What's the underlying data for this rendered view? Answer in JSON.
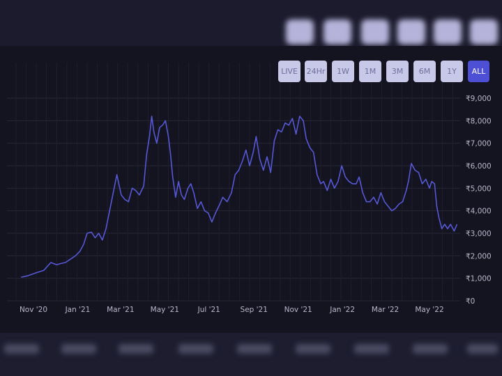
{
  "range_buttons": [
    {
      "label": "LIVE",
      "active": false
    },
    {
      "label": "24Hr",
      "active": false
    },
    {
      "label": "1W",
      "active": false
    },
    {
      "label": "1M",
      "active": false
    },
    {
      "label": "3M",
      "active": false
    },
    {
      "label": "6M",
      "active": false
    },
    {
      "label": "1Y",
      "active": false
    },
    {
      "label": "ALL",
      "active": true
    }
  ],
  "colors": {
    "line": "#5658d6",
    "active_button": "#4d4fd4",
    "button": "#c8c8e8",
    "grid": "#262636"
  },
  "chart_data": {
    "type": "line",
    "title": "",
    "xlabel": "",
    "ylabel": "",
    "y_ticks": [
      "₹0",
      "₹1,000",
      "₹2,000",
      "₹3,000",
      "₹4,000",
      "₹5,000",
      "₹6,000",
      "₹7,000",
      "₹8,000",
      "₹9,000"
    ],
    "y_tick_values": [
      0,
      1000,
      2000,
      3000,
      4000,
      5000,
      6000,
      7000,
      8000,
      9000
    ],
    "x_ticks": [
      "Nov '20",
      "Jan '21",
      "Mar '21",
      "May '21",
      "Jul '21",
      "Sep '21",
      "Nov '21",
      "Jan '22",
      "Mar '22",
      "May '22"
    ],
    "x_tick_dates": [
      "2020-11-01",
      "2021-01-01",
      "2021-03-01",
      "2021-05-01",
      "2021-07-01",
      "2021-09-01",
      "2021-11-01",
      "2022-01-01",
      "2022-03-01",
      "2022-05-01"
    ],
    "ylim": [
      0,
      9000
    ],
    "grid": true,
    "legend": "none",
    "series": [
      {
        "x": [
          "2020-10-15",
          "2020-10-25",
          "2020-11-05",
          "2020-11-15",
          "2020-11-25",
          "2020-12-03",
          "2020-12-08",
          "2020-12-15",
          "2020-12-22",
          "2020-12-29",
          "2021-01-04",
          "2021-01-09",
          "2021-01-14",
          "2021-01-20",
          "2021-01-25",
          "2021-01-30",
          "2021-02-04",
          "2021-02-09",
          "2021-02-14",
          "2021-02-19",
          "2021-02-24",
          "2021-03-02",
          "2021-03-07",
          "2021-03-12",
          "2021-03-17",
          "2021-03-22",
          "2021-03-27",
          "2021-04-02",
          "2021-04-06",
          "2021-04-10",
          "2021-04-13",
          "2021-04-16",
          "2021-04-20",
          "2021-04-24",
          "2021-04-28",
          "2021-05-02",
          "2021-05-06",
          "2021-05-09",
          "2021-05-12",
          "2021-05-16",
          "2021-05-20",
          "2021-05-24",
          "2021-05-28",
          "2021-06-02",
          "2021-06-06",
          "2021-06-10",
          "2021-06-15",
          "2021-06-20",
          "2021-06-25",
          "2021-06-30",
          "2021-07-05",
          "2021-07-10",
          "2021-07-16",
          "2021-07-20",
          "2021-07-26",
          "2021-08-01",
          "2021-08-06",
          "2021-08-11",
          "2021-08-16",
          "2021-08-21",
          "2021-08-26",
          "2021-08-31",
          "2021-09-04",
          "2021-09-09",
          "2021-09-14",
          "2021-09-19",
          "2021-09-24",
          "2021-09-29",
          "2021-10-04",
          "2021-10-09",
          "2021-10-14",
          "2021-10-19",
          "2021-10-24",
          "2021-10-29",
          "2021-11-03",
          "2021-11-08",
          "2021-11-12",
          "2021-11-17",
          "2021-11-22",
          "2021-11-27",
          "2021-12-02",
          "2021-12-06",
          "2021-12-11",
          "2021-12-16",
          "2021-12-21",
          "2021-12-26",
          "2021-12-31",
          "2022-01-05",
          "2022-01-10",
          "2022-01-15",
          "2022-01-20",
          "2022-01-24",
          "2022-01-29",
          "2022-02-03",
          "2022-02-08",
          "2022-02-13",
          "2022-02-18",
          "2022-02-23",
          "2022-02-28",
          "2022-03-05",
          "2022-03-10",
          "2022-03-15",
          "2022-03-20",
          "2022-03-25",
          "2022-03-30",
          "2022-04-02",
          "2022-04-06",
          "2022-04-11",
          "2022-04-16",
          "2022-04-21",
          "2022-04-26",
          "2022-05-01",
          "2022-05-04",
          "2022-05-08",
          "2022-05-11",
          "2022-05-14",
          "2022-05-18",
          "2022-05-22",
          "2022-05-26",
          "2022-05-30",
          "2022-06-04",
          "2022-06-08"
        ],
        "values": [
          1050,
          1120,
          1250,
          1350,
          1700,
          1600,
          1650,
          1700,
          1850,
          2000,
          2200,
          2500,
          3000,
          3050,
          2800,
          3000,
          2700,
          3200,
          4000,
          4800,
          5600,
          4700,
          4500,
          4400,
          5000,
          4900,
          4700,
          5100,
          6500,
          7300,
          8200,
          7500,
          7000,
          7700,
          7800,
          8000,
          7300,
          6500,
          5500,
          4600,
          5300,
          4700,
          4500,
          5000,
          5200,
          4800,
          4100,
          4400,
          4000,
          3900,
          3500,
          3900,
          4300,
          4600,
          4400,
          4800,
          5600,
          5800,
          6200,
          6700,
          6000,
          6600,
          7300,
          6300,
          5800,
          6400,
          5700,
          7100,
          7600,
          7500,
          7900,
          7800,
          8100,
          7400,
          8200,
          8000,
          7200,
          6800,
          6600,
          5600,
          5200,
          5300,
          4900,
          5400,
          5000,
          5300,
          6000,
          5500,
          5300,
          5200,
          5200,
          5500,
          4800,
          4400,
          4400,
          4600,
          4300,
          4800,
          4400,
          4200,
          4000,
          4100,
          4300,
          4400,
          4900,
          5300,
          6100,
          5800,
          5700,
          5200,
          5400,
          5000,
          5300,
          5200,
          4200,
          3700,
          3200,
          3400,
          3200,
          3400,
          3100,
          3400
        ]
      }
    ]
  }
}
